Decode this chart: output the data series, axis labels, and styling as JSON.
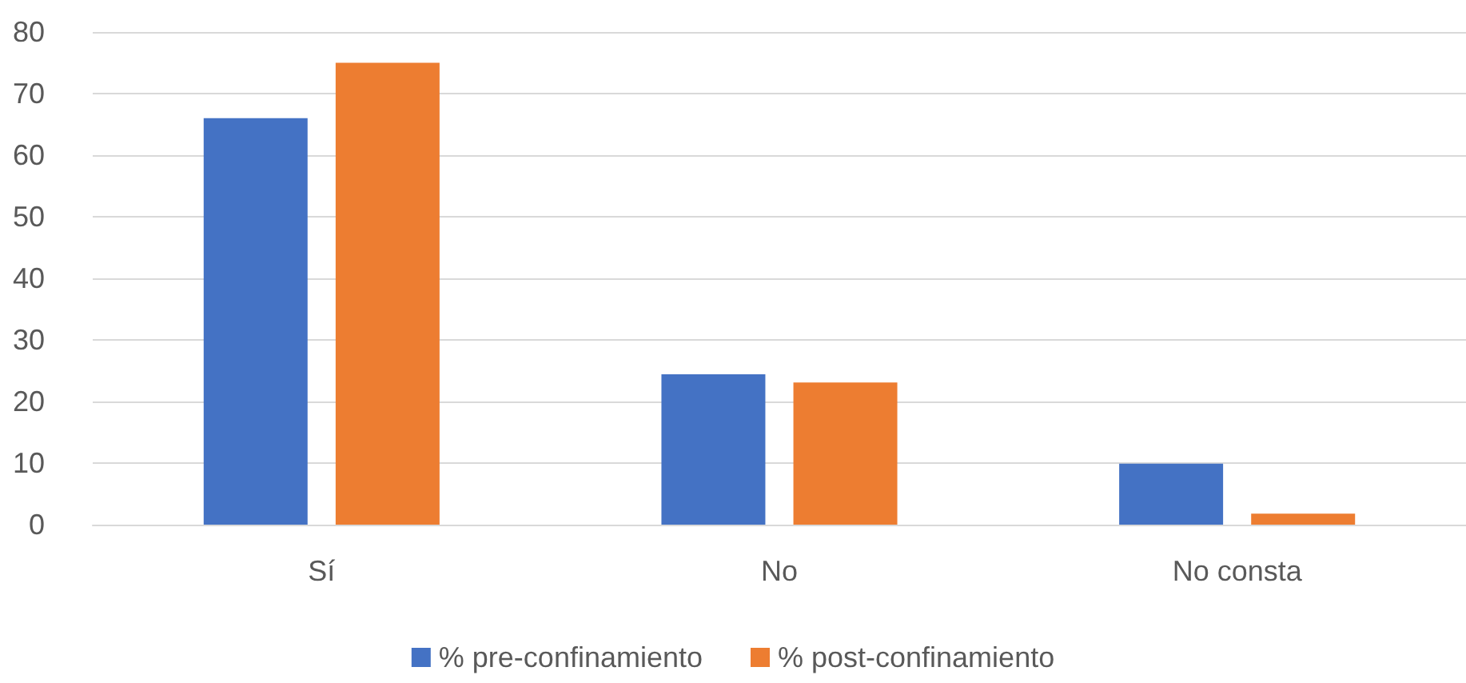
{
  "chart_data": {
    "type": "bar",
    "categories": [
      "Sí",
      "No",
      "No consta"
    ],
    "series": [
      {
        "name": "% pre-confinamiento",
        "color": "#4472c4",
        "values": [
          66,
          24.4,
          9.9
        ]
      },
      {
        "name": "% post-confinamiento",
        "color": "#ed7d31",
        "values": [
          75,
          23.1,
          1.8
        ]
      }
    ],
    "ylim": [
      0,
      80
    ],
    "yticks": [
      0,
      10,
      20,
      30,
      40,
      50,
      60,
      70,
      80
    ],
    "grid": "y",
    "legend": "bottom"
  }
}
